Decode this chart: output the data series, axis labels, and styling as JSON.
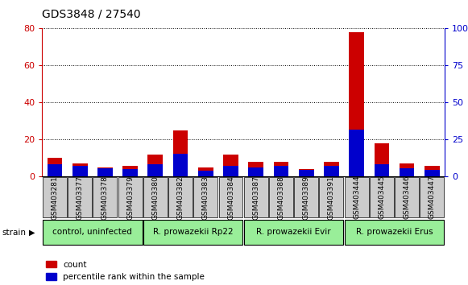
{
  "title": "GDS3848 / 27540",
  "samples": [
    "GSM403281",
    "GSM403377",
    "GSM403378",
    "GSM403379",
    "GSM403380",
    "GSM403382",
    "GSM403383",
    "GSM403384",
    "GSM403387",
    "GSM403388",
    "GSM403389",
    "GSM403391",
    "GSM403444",
    "GSM403445",
    "GSM403446",
    "GSM403447"
  ],
  "count_values": [
    10,
    7,
    5,
    6,
    12,
    25,
    5,
    12,
    8,
    8,
    4,
    8,
    78,
    18,
    7,
    6
  ],
  "percentile_values": [
    8.5,
    7.5,
    5.5,
    5.0,
    8.5,
    15.5,
    4.0,
    7.5,
    6.5,
    7.5,
    4.5,
    7.5,
    32,
    8.5,
    5.5,
    4.5
  ],
  "group_defs": [
    {
      "label": "control, uninfected",
      "indices": [
        0,
        1,
        2,
        3
      ]
    },
    {
      "label": "R. prowazekii Rp22",
      "indices": [
        4,
        5,
        6,
        7
      ]
    },
    {
      "label": "R. prowazekii Evir",
      "indices": [
        8,
        9,
        10,
        11
      ]
    },
    {
      "label": "R. prowazekii Erus",
      "indices": [
        12,
        13,
        14,
        15
      ]
    }
  ],
  "ylim_left": [
    0,
    80
  ],
  "ylim_right": [
    0,
    100
  ],
  "yticks_left": [
    0,
    20,
    40,
    60,
    80
  ],
  "yticks_right": [
    0,
    25,
    50,
    75,
    100
  ],
  "bar_width": 0.6,
  "count_color": "#cc0000",
  "percentile_color": "#0000cc",
  "background_color": "#ffffff",
  "tick_label_color": "#cc0000",
  "right_tick_color": "#0000cc",
  "group_color": "#99ee99",
  "sample_box_color": "#cccccc",
  "group_label_fontsize": 7.5,
  "sample_fontsize": 6.5,
  "title_fontsize": 10,
  "legend_count_label": "count",
  "legend_percentile_label": "percentile rank within the sample",
  "strain_label": "strain"
}
